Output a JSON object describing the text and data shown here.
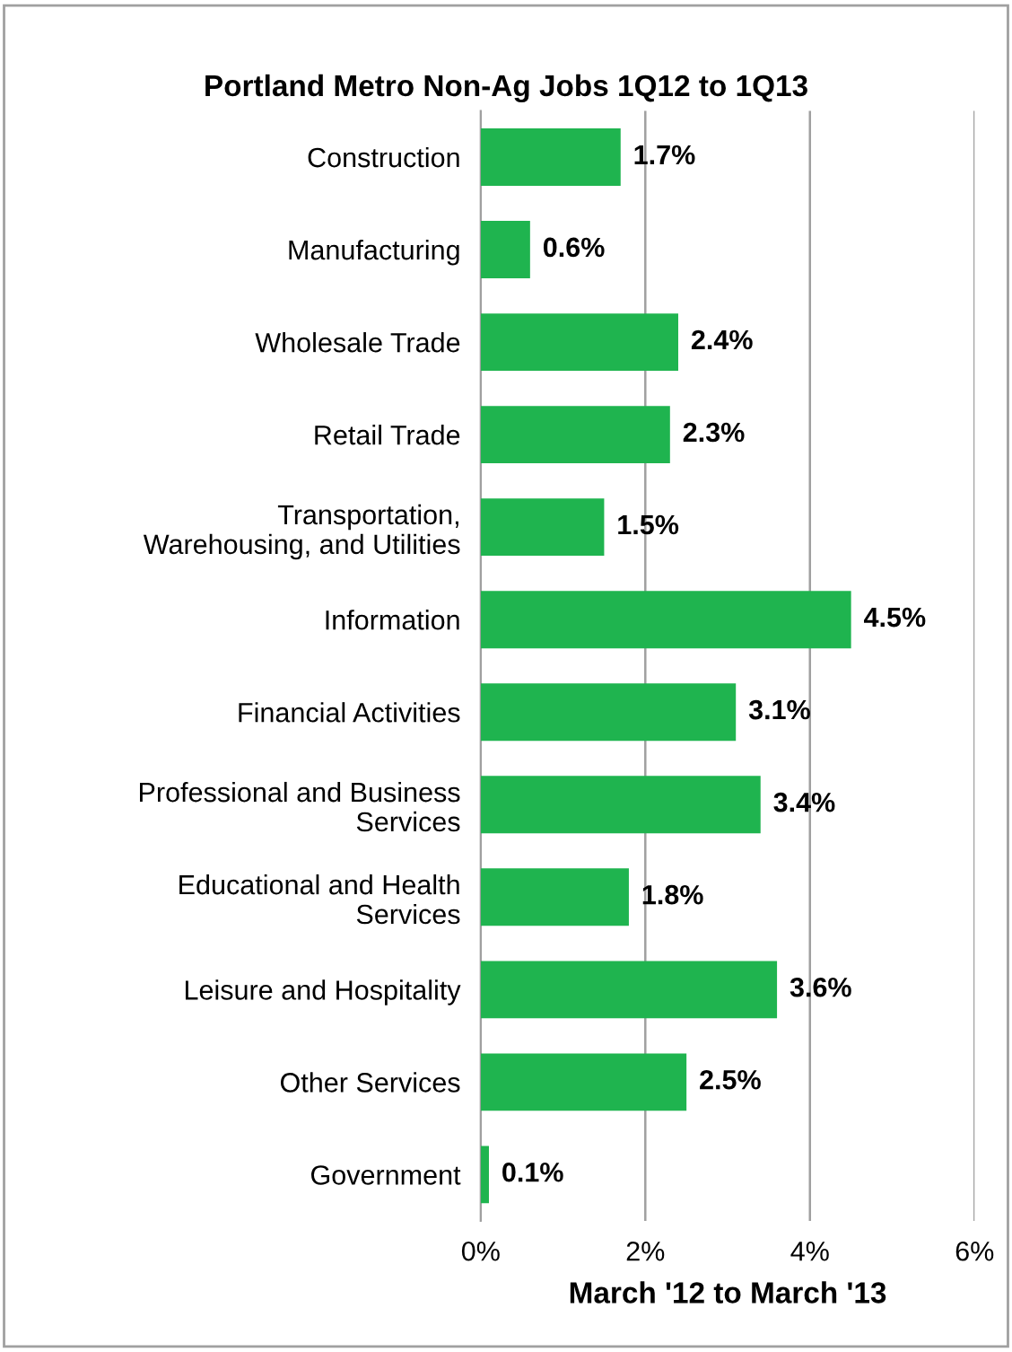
{
  "chart_data": {
    "type": "bar",
    "orientation": "horizontal",
    "title": "Portland Metro Non-Ag Jobs 1Q12 to 1Q13",
    "xlabel": "March '12 to March '13",
    "categories": [
      "Construction",
      "Manufacturing",
      "Wholesale Trade",
      "Retail Trade",
      "Transportation,\nWarehousing, and Utilities",
      "Information",
      "Financial Activities",
      "Professional and Business\nServices",
      "Educational and Health\nServices",
      "Leisure and Hospitality",
      "Other Services",
      "Government"
    ],
    "values": [
      1.7,
      0.6,
      2.4,
      2.3,
      1.5,
      4.5,
      3.1,
      3.4,
      1.8,
      3.6,
      2.5,
      0.1
    ],
    "value_labels": [
      "1.7%",
      "0.6%",
      "2.4%",
      "2.3%",
      "1.5%",
      "4.5%",
      "3.1%",
      "3.4%",
      "1.8%",
      "3.6%",
      "2.5%",
      "0.1%"
    ],
    "color": "#1fb44f",
    "xlim": [
      0,
      6
    ],
    "xticks": [
      {
        "value": 0,
        "label": "0%"
      },
      {
        "value": 2,
        "label": "2%"
      },
      {
        "value": 4,
        "label": "4%"
      },
      {
        "value": 6,
        "label": "6%"
      }
    ],
    "grid": "x",
    "legend": false
  }
}
